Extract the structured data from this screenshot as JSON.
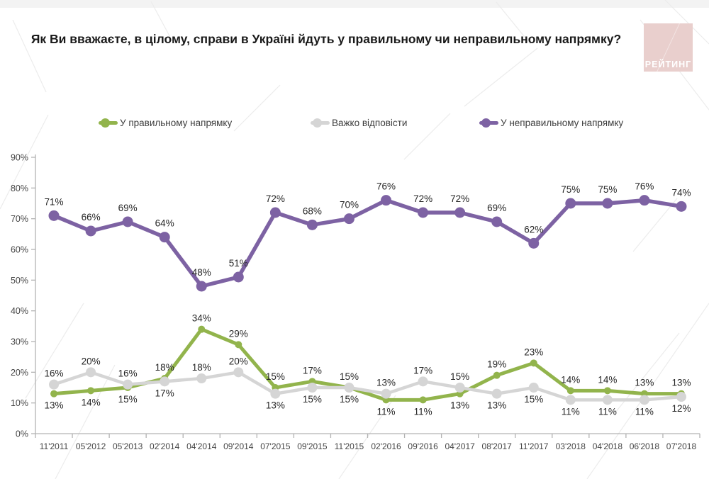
{
  "page": {
    "title": "Як Ви вважаєте, в цілому, справи в Україні йдуть у правильному чи неправильному напрямку?"
  },
  "logo": {
    "text": "РЕЙТИНГ",
    "bg": "#e9cfcd",
    "fg": "#ffffff"
  },
  "legend": [
    {
      "label": "У правильному напрямку",
      "color": "#92b44c"
    },
    {
      "label": "Важко відповісти",
      "color": "#d5d5d5"
    },
    {
      "label": "У неправильному напрямку",
      "color": "#7d62a3"
    }
  ],
  "chart_data": {
    "type": "line",
    "categories": [
      "11'2011",
      "05'2012",
      "05'2013",
      "02'2014",
      "04'2014",
      "09'2014",
      "07'2015",
      "09'2015",
      "11'2015",
      "02'2016",
      "09'2016",
      "04'2017",
      "08'2017",
      "11'2017",
      "03'2018",
      "04'2018",
      "06'2018",
      "07'2018"
    ],
    "series": [
      {
        "name": "У правильному напрямку",
        "color": "#92b44c",
        "values": [
          13,
          14,
          15,
          18,
          34,
          29,
          15,
          17,
          15,
          11,
          11,
          13,
          19,
          23,
          14,
          14,
          13,
          13
        ]
      },
      {
        "name": "Важко відповісти",
        "color": "#d5d5d5",
        "values": [
          16,
          20,
          16,
          17,
          18,
          20,
          13,
          15,
          15,
          13,
          17,
          15,
          13,
          15,
          11,
          11,
          11,
          12
        ]
      },
      {
        "name": "У неправильному напрямку",
        "color": "#7d62a3",
        "values": [
          71,
          66,
          69,
          64,
          48,
          51,
          72,
          68,
          70,
          76,
          72,
          72,
          69,
          62,
          75,
          75,
          76,
          74
        ]
      }
    ],
    "title": "Як Ви вважаєте, в цілому, справи в Україні йдуть у правильному чи неправильному напрямку?",
    "xlabel": "",
    "ylabel": "",
    "ylim": [
      0,
      90
    ],
    "yticks": [
      "0%",
      "10%",
      "20%",
      "30%",
      "40%",
      "50%",
      "60%",
      "70%",
      "80%",
      "90%"
    ],
    "grid": false,
    "legend_position": "top",
    "label_format": "percent",
    "axis_color": "#b3b3b3",
    "label_color": "#262626",
    "tick_label_color": "#454545"
  }
}
